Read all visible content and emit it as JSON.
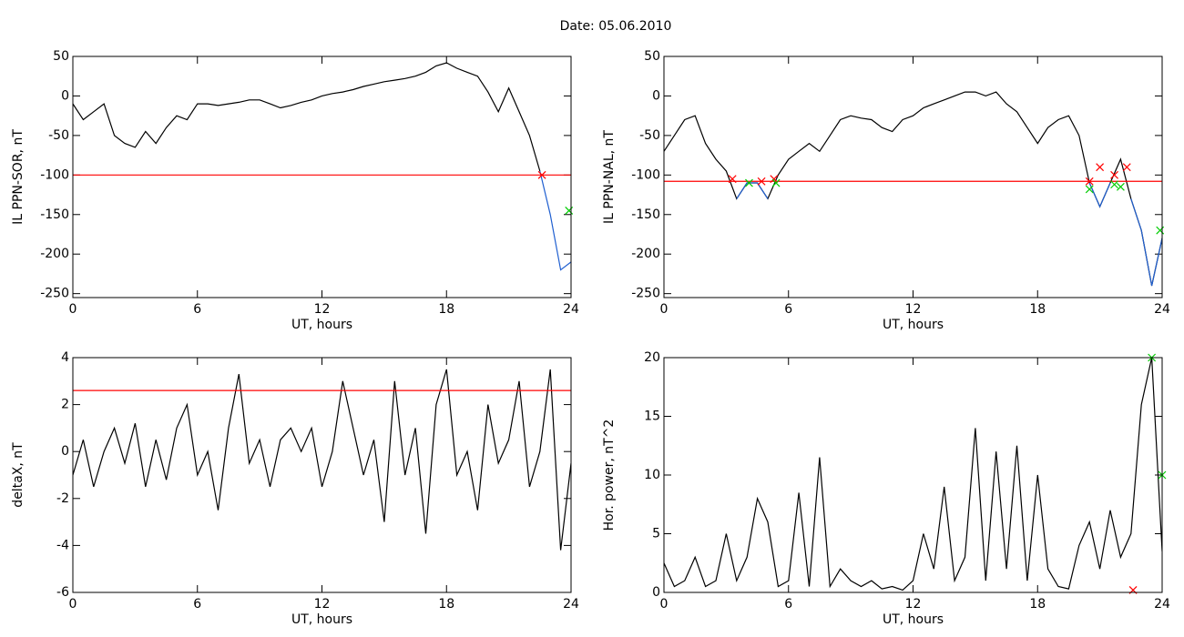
{
  "title": "Date:  05.06.2010",
  "chart_data": [
    {
      "type": "line",
      "xlabel": "UT, hours",
      "ylabel": "IL PPN-SOR, nT",
      "xlim": [
        0,
        24
      ],
      "xticks": [
        0,
        6,
        12,
        18,
        24
      ],
      "ylim": [
        -255,
        50
      ],
      "yticks": [
        -250,
        -200,
        -150,
        -100,
        -50,
        0,
        50
      ],
      "x": [
        0,
        0.5,
        1,
        1.5,
        2,
        2.5,
        3,
        3.5,
        4,
        4.5,
        5,
        5.5,
        6,
        6.5,
        7,
        7.5,
        8,
        8.5,
        9,
        9.5,
        10,
        10.5,
        11,
        11.5,
        12,
        12.5,
        13,
        13.5,
        14,
        14.5,
        15,
        15.5,
        16,
        16.5,
        17,
        17.5,
        18,
        18.5,
        19,
        19.5,
        20,
        20.5,
        21,
        21.5,
        22,
        22.5,
        23,
        23.5,
        24
      ],
      "series": [
        {
          "color": "#000000",
          "values": [
            -10,
            -30,
            -20,
            -10,
            -50,
            -60,
            -65,
            -45,
            -60,
            -40,
            -25,
            -30,
            -10,
            -10,
            -12,
            -10,
            -8,
            -5,
            -5,
            -10,
            -15,
            -12,
            -8,
            -5,
            0,
            3,
            5,
            8,
            12,
            15,
            18,
            20,
            22,
            25,
            30,
            38,
            42,
            35,
            30,
            25,
            5,
            -20,
            10,
            -20,
            -50,
            -95,
            null,
            null,
            null
          ]
        },
        {
          "color": "#1f5fd0",
          "values": [
            null,
            null,
            null,
            null,
            null,
            null,
            null,
            null,
            null,
            null,
            null,
            null,
            null,
            null,
            null,
            null,
            null,
            null,
            null,
            null,
            null,
            null,
            null,
            null,
            null,
            null,
            null,
            null,
            null,
            null,
            null,
            null,
            null,
            null,
            null,
            null,
            null,
            null,
            null,
            null,
            null,
            null,
            null,
            null,
            null,
            -95,
            -150,
            -220,
            -210
          ]
        }
      ],
      "threshold": -100,
      "threshold_color": "#ff0000",
      "markers": [
        {
          "x": 22.6,
          "y": -100,
          "color": "#ff0000"
        },
        {
          "x": 23.9,
          "y": -145,
          "color": "#00cc00"
        }
      ]
    },
    {
      "type": "line",
      "xlabel": "UT, hours",
      "ylabel": "IL PPN-NAL, nT",
      "xlim": [
        0,
        24
      ],
      "xticks": [
        0,
        6,
        12,
        18,
        24
      ],
      "ylim": [
        -255,
        50
      ],
      "yticks": [
        -250,
        -200,
        -150,
        -100,
        -50,
        0,
        50
      ],
      "x": [
        0,
        0.5,
        1,
        1.5,
        2,
        2.5,
        3,
        3.5,
        4,
        4.5,
        5,
        5.5,
        6,
        6.5,
        7,
        7.5,
        8,
        8.5,
        9,
        9.5,
        10,
        10.5,
        11,
        11.5,
        12,
        12.5,
        13,
        13.5,
        14,
        14.5,
        15,
        15.5,
        16,
        16.5,
        17,
        17.5,
        18,
        18.5,
        19,
        19.5,
        20,
        20.5,
        21,
        21.5,
        22,
        22.5,
        23,
        23.5,
        24
      ],
      "series": [
        {
          "color": "#000000",
          "values": [
            -70,
            -50,
            -30,
            -25,
            -60,
            -80,
            -95,
            -130,
            -110,
            -110,
            -130,
            -100,
            -80,
            -70,
            -60,
            -70,
            -50,
            -30,
            -25,
            -28,
            -30,
            -40,
            -45,
            -30,
            -25,
            -15,
            -10,
            -5,
            0,
            5,
            5,
            0,
            5,
            -10,
            -20,
            -40,
            -60,
            -40,
            -30,
            -25,
            -50,
            -110,
            -140,
            -110,
            -80,
            -130,
            -170,
            -240,
            -180
          ]
        },
        {
          "color": "#1f5fd0",
          "values": [
            null,
            null,
            null,
            null,
            null,
            null,
            null,
            -130,
            -110,
            -110,
            -130,
            null,
            null,
            null,
            null,
            null,
            null,
            null,
            null,
            null,
            null,
            null,
            null,
            null,
            null,
            null,
            null,
            null,
            null,
            null,
            null,
            null,
            null,
            null,
            null,
            null,
            null,
            null,
            null,
            null,
            null,
            -110,
            -140,
            -110,
            null,
            -130,
            -170,
            -240,
            -180
          ]
        }
      ],
      "threshold": -108,
      "threshold_color": "#ff0000",
      "markers": [
        {
          "x": 3.3,
          "y": -105,
          "color": "#ff0000"
        },
        {
          "x": 4.7,
          "y": -108,
          "color": "#ff0000"
        },
        {
          "x": 5.3,
          "y": -105,
          "color": "#ff0000"
        },
        {
          "x": 20.5,
          "y": -108,
          "color": "#ff0000"
        },
        {
          "x": 21,
          "y": -90,
          "color": "#ff0000"
        },
        {
          "x": 21.7,
          "y": -100,
          "color": "#ff0000"
        },
        {
          "x": 22.3,
          "y": -90,
          "color": "#ff0000"
        },
        {
          "x": 4.1,
          "y": -110,
          "color": "#00cc00"
        },
        {
          "x": 5.4,
          "y": -110,
          "color": "#00cc00"
        },
        {
          "x": 20.5,
          "y": -118,
          "color": "#00cc00"
        },
        {
          "x": 21.7,
          "y": -112,
          "color": "#00cc00"
        },
        {
          "x": 22,
          "y": -115,
          "color": "#00cc00"
        },
        {
          "x": 23.9,
          "y": -170,
          "color": "#00cc00"
        }
      ]
    },
    {
      "type": "line",
      "xlabel": "UT, hours",
      "ylabel": "deltaX, nT",
      "xlim": [
        0,
        24
      ],
      "xticks": [
        0,
        6,
        12,
        18,
        24
      ],
      "ylim": [
        -6,
        4
      ],
      "yticks": [
        -6,
        -4,
        -2,
        0,
        2,
        4
      ],
      "x": [
        0,
        0.5,
        1,
        1.5,
        2,
        2.5,
        3,
        3.5,
        4,
        4.5,
        5,
        5.5,
        6,
        6.5,
        7,
        7.5,
        8,
        8.5,
        9,
        9.5,
        10,
        10.5,
        11,
        11.5,
        12,
        12.5,
        13,
        13.5,
        14,
        14.5,
        15,
        15.5,
        16,
        16.5,
        17,
        17.5,
        18,
        18.5,
        19,
        19.5,
        20,
        20.5,
        21,
        21.5,
        22,
        22.5,
        23,
        23.5,
        24
      ],
      "series": [
        {
          "color": "#000000",
          "values": [
            -1,
            0.5,
            -1.5,
            0,
            1,
            -0.5,
            1.2,
            -1.5,
            0.5,
            -1.2,
            1,
            2,
            -1,
            0,
            -2.5,
            1,
            3.3,
            -0.5,
            0.5,
            -1.5,
            0.5,
            1,
            0,
            1,
            -1.5,
            0,
            3,
            1,
            -1,
            0.5,
            -3,
            3,
            -1,
            1,
            -3.5,
            2,
            3.5,
            -1,
            0,
            -2.5,
            2,
            -0.5,
            0.5,
            3,
            -1.5,
            0,
            3.5,
            -4.2,
            -0.5
          ]
        }
      ],
      "threshold": 2.6,
      "threshold_color": "#ff0000",
      "markers": []
    },
    {
      "type": "line",
      "xlabel": "UT, hours",
      "ylabel": "Hor. power, nT^2",
      "xlim": [
        0,
        24
      ],
      "xticks": [
        0,
        6,
        12,
        18,
        24
      ],
      "ylim": [
        0,
        20
      ],
      "yticks": [
        0,
        5,
        10,
        15,
        20
      ],
      "x": [
        0,
        0.5,
        1,
        1.5,
        2,
        2.5,
        3,
        3.5,
        4,
        4.5,
        5,
        5.5,
        6,
        6.5,
        7,
        7.5,
        8,
        8.5,
        9,
        9.5,
        10,
        10.5,
        11,
        11.5,
        12,
        12.5,
        13,
        13.5,
        14,
        14.5,
        15,
        15.5,
        16,
        16.5,
        17,
        17.5,
        18,
        18.5,
        19,
        19.5,
        20,
        20.5,
        21,
        21.5,
        22,
        22.5,
        23,
        23.5,
        24
      ],
      "series": [
        {
          "color": "#000000",
          "values": [
            2.5,
            0.5,
            1,
            3,
            0.5,
            1,
            5,
            1,
            3,
            8,
            6,
            0.5,
            1,
            8.5,
            0.5,
            11.5,
            0.5,
            2,
            1,
            0.5,
            1,
            0.3,
            0.5,
            0.2,
            1,
            5,
            2,
            9,
            1,
            3,
            14,
            1,
            12,
            2,
            12.5,
            1,
            10,
            2,
            0.5,
            0.3,
            4,
            6,
            2,
            7,
            3,
            5,
            16,
            20,
            3.5
          ]
        }
      ],
      "markers": [
        {
          "x": 22.6,
          "y": 0.2,
          "color": "#ff0000"
        },
        {
          "x": 23.5,
          "y": 20,
          "color": "#00cc00"
        },
        {
          "x": 24,
          "y": 10,
          "color": "#00cc00"
        }
      ]
    }
  ]
}
